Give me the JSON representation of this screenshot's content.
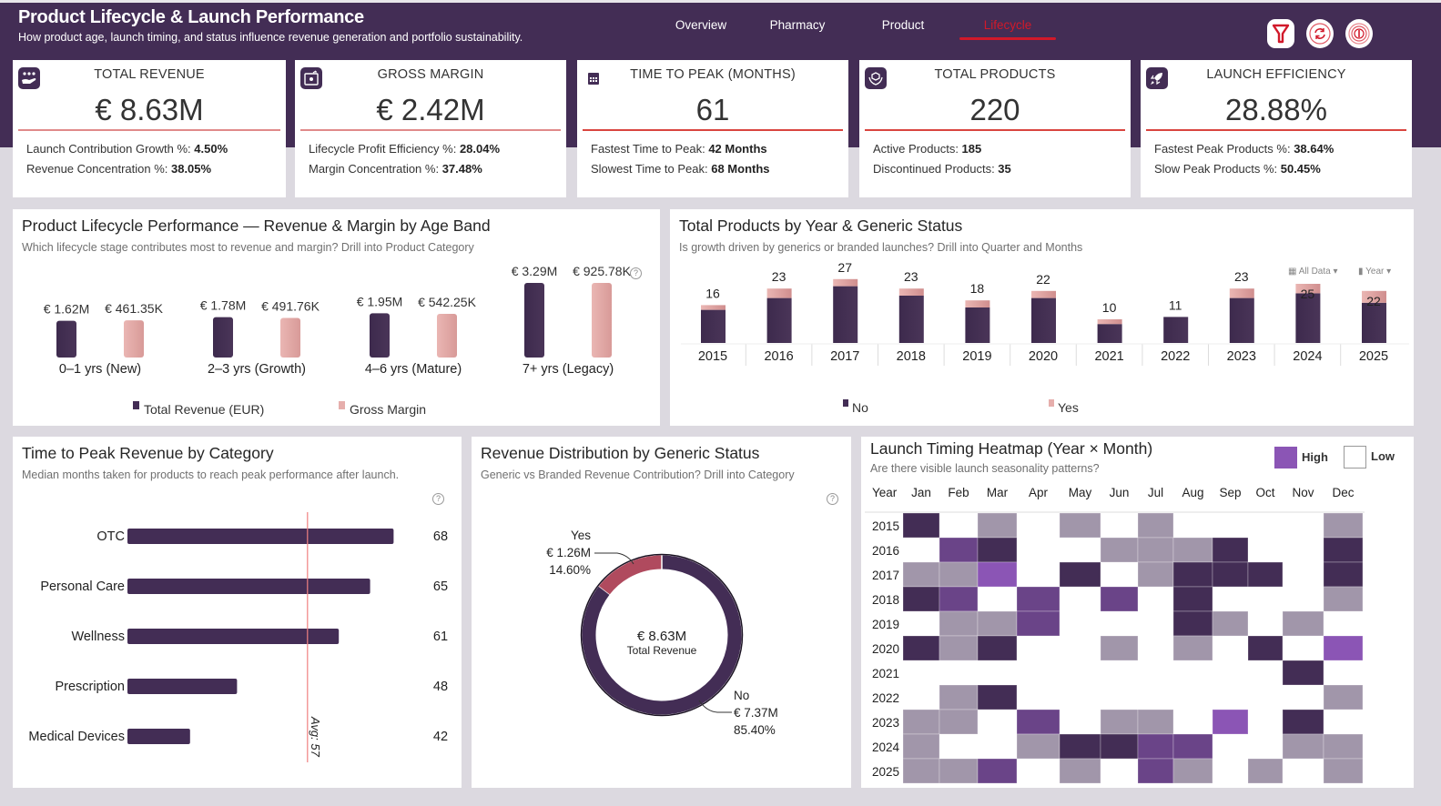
{
  "header": {
    "title": "Product Lifecycle & Launch Performance",
    "subtitle": "How product age, launch timing, and status influence revenue generation and portfolio sustainability.",
    "nav": [
      {
        "label": "Overview",
        "active": false
      },
      {
        "label": "Pharmacy",
        "active": false
      },
      {
        "label": "Product",
        "active": false
      },
      {
        "label": "Lifecycle",
        "active": true
      }
    ],
    "icons": [
      "filter-icon",
      "refresh-icon",
      "info-icon"
    ]
  },
  "colors": {
    "header_bg": "#432d55",
    "accent_red": "#d1192a",
    "revenue": "#432d55",
    "margin": "#e6aeac",
    "yes_slice": "#b04a5e",
    "heat_levels": [
      "#ffffff",
      "#a196aa",
      "#432d55",
      "#6a4488",
      "#8b55b5"
    ]
  },
  "kpis": [
    {
      "icon": "hand-coins-icon",
      "label": "TOTAL REVENUE",
      "value": "€ 8.63M",
      "lines": [
        {
          "label": "Launch Contribution Growth %: ",
          "value": "4.50%"
        },
        {
          "label": "Revenue Concentration %: ",
          "value": "38.05%"
        }
      ]
    },
    {
      "icon": "margin-chart-icon",
      "label": "GROSS MARGIN",
      "value": "€ 2.42M",
      "lines": [
        {
          "label": "Lifecycle Profit Efficiency %: ",
          "value": "28.04%"
        },
        {
          "label": "Margin Concentration %: ",
          "value": "37.48%"
        }
      ]
    },
    {
      "icon": "calendar-icon",
      "label": "TIME TO PEAK (MONTHS)",
      "value": "61",
      "lines": [
        {
          "label": "Fastest Time to Peak: ",
          "value": "42 Months"
        },
        {
          "label": "Slowest Time to Peak: ",
          "value": "68 Months"
        }
      ]
    },
    {
      "icon": "product-hands-icon",
      "label": "TOTAL PRODUCTS",
      "value": "220",
      "lines": [
        {
          "label": "Active Products: ",
          "value": "185"
        },
        {
          "label": "Discontinued Products: ",
          "value": "35"
        }
      ]
    },
    {
      "icon": "rocket-icon",
      "label": "LAUNCH EFFICIENCY",
      "value": "28.88%",
      "lines": [
        {
          "label": "Fastest Peak Products %: ",
          "value": "38.64%"
        },
        {
          "label": "Slow Peak Products %: ",
          "value": "50.45%"
        }
      ]
    }
  ],
  "chart_data": [
    {
      "id": "age_band",
      "type": "bar",
      "title": "Product Lifecycle Performance — Revenue & Margin by Age Band",
      "subtitle": "Which lifecycle stage contributes most to revenue and margin? Drill into Product Category",
      "categories": [
        "0–1 yrs (New)",
        "2–3 yrs (Growth)",
        "4–6 yrs (Mature)",
        "7+ yrs (Legacy)"
      ],
      "series": [
        {
          "name": "Total Revenue (EUR)",
          "values": [
            1620000,
            1780000,
            1950000,
            3290000
          ],
          "labels": [
            "€ 1.62M",
            "€ 1.78M",
            "€ 1.95M",
            "€ 3.29M"
          ]
        },
        {
          "name": "Gross Margin",
          "values": [
            461350,
            491760,
            542250,
            925780
          ],
          "labels": [
            "€ 461.35K",
            "€ 491.76K",
            "€ 542.25K",
            "€ 925.78K"
          ]
        }
      ],
      "legend": "bottom",
      "grid": false
    },
    {
      "id": "products_by_year",
      "type": "bar",
      "stacked": true,
      "title": "Total Products by Year & Generic Status",
      "subtitle": "Is growth driven by generics or branded launches? Drill into Quarter and  Months",
      "categories": [
        "2015",
        "2016",
        "2017",
        "2018",
        "2019",
        "2020",
        "2021",
        "2022",
        "2023",
        "2024",
        "2025"
      ],
      "totals": [
        16,
        23,
        27,
        23,
        18,
        22,
        10,
        11,
        23,
        25,
        22
      ],
      "series": [
        {
          "name": "No",
          "values": [
            14,
            19,
            24,
            20,
            15,
            19,
            8,
            11,
            19,
            21,
            17
          ]
        },
        {
          "name": "Yes",
          "values": [
            2,
            4,
            3,
            3,
            3,
            3,
            2,
            0,
            4,
            4,
            5
          ]
        }
      ],
      "controls": [
        "All Data",
        "Year"
      ],
      "legend": "bottom",
      "grid": false
    },
    {
      "id": "time_to_peak",
      "type": "bar",
      "orientation": "horizontal",
      "title": "Time to Peak Revenue by Category",
      "subtitle": "Median months taken for products to reach peak performance after launch.",
      "categories": [
        "OTC",
        "Personal Care",
        "Wellness",
        "Prescription",
        "Medical Devices"
      ],
      "values": [
        68,
        65,
        61,
        48,
        42
      ],
      "reference_line": {
        "label": "Avg: 57",
        "value": 57
      },
      "xlim": [
        34,
        71
      ],
      "grid": false
    },
    {
      "id": "generic_donut",
      "type": "pie",
      "donut": true,
      "title": "Revenue Distribution by Generic Status",
      "subtitle": "Generic vs Branded Revenue Contribution? Drill into Category",
      "center_value": "€ 8.63M",
      "center_label": "Total Revenue",
      "slices": [
        {
          "name": "Yes",
          "value": 1260000,
          "label": "€ 1.26M",
          "percent": 14.6,
          "percent_label": "14.60%"
        },
        {
          "name": "No",
          "value": 7370000,
          "label": "€ 7.37M",
          "percent": 85.4,
          "percent_label": "85.40%"
        }
      ]
    },
    {
      "id": "launch_heatmap",
      "type": "heatmap",
      "title": "Launch Timing Heatmap (Year × Month)",
      "subtitle": "Are there visible launch seasonality patterns?",
      "legend": [
        {
          "label": "High"
        },
        {
          "label": "Low"
        }
      ],
      "row_header": "Year",
      "columns": [
        "Jan",
        "Feb",
        "Mar",
        "Apr",
        "May",
        "Jun",
        "Jul",
        "Aug",
        "Sep",
        "Oct",
        "Nov",
        "Dec"
      ],
      "rows": [
        "2015",
        "2016",
        "2017",
        "2018",
        "2019",
        "2020",
        "2021",
        "2022",
        "2023",
        "2024",
        "2025"
      ],
      "scale_note": "levels 0 (Low, white) to 4 (High, bright purple)",
      "values": [
        [
          2,
          0,
          1,
          0,
          1,
          0,
          1,
          0,
          0,
          0,
          0,
          1
        ],
        [
          0,
          3,
          2,
          0,
          0,
          1,
          1,
          1,
          2,
          0,
          0,
          2
        ],
        [
          1,
          1,
          4,
          0,
          2,
          0,
          1,
          2,
          2,
          2,
          0,
          2
        ],
        [
          2,
          3,
          0,
          3,
          0,
          3,
          0,
          2,
          0,
          0,
          0,
          1
        ],
        [
          0,
          1,
          1,
          3,
          0,
          0,
          0,
          2,
          1,
          0,
          1,
          0
        ],
        [
          2,
          1,
          2,
          0,
          0,
          1,
          0,
          1,
          0,
          2,
          0,
          4
        ],
        [
          0,
          0,
          0,
          0,
          0,
          0,
          0,
          0,
          0,
          0,
          2,
          0
        ],
        [
          0,
          1,
          2,
          0,
          0,
          0,
          0,
          0,
          0,
          0,
          0,
          1
        ],
        [
          1,
          1,
          0,
          3,
          0,
          1,
          1,
          0,
          4,
          0,
          2,
          0
        ],
        [
          1,
          0,
          0,
          1,
          2,
          2,
          3,
          3,
          0,
          0,
          1,
          1
        ],
        [
          1,
          1,
          3,
          0,
          1,
          0,
          3,
          1,
          0,
          1,
          0,
          1
        ]
      ]
    }
  ]
}
